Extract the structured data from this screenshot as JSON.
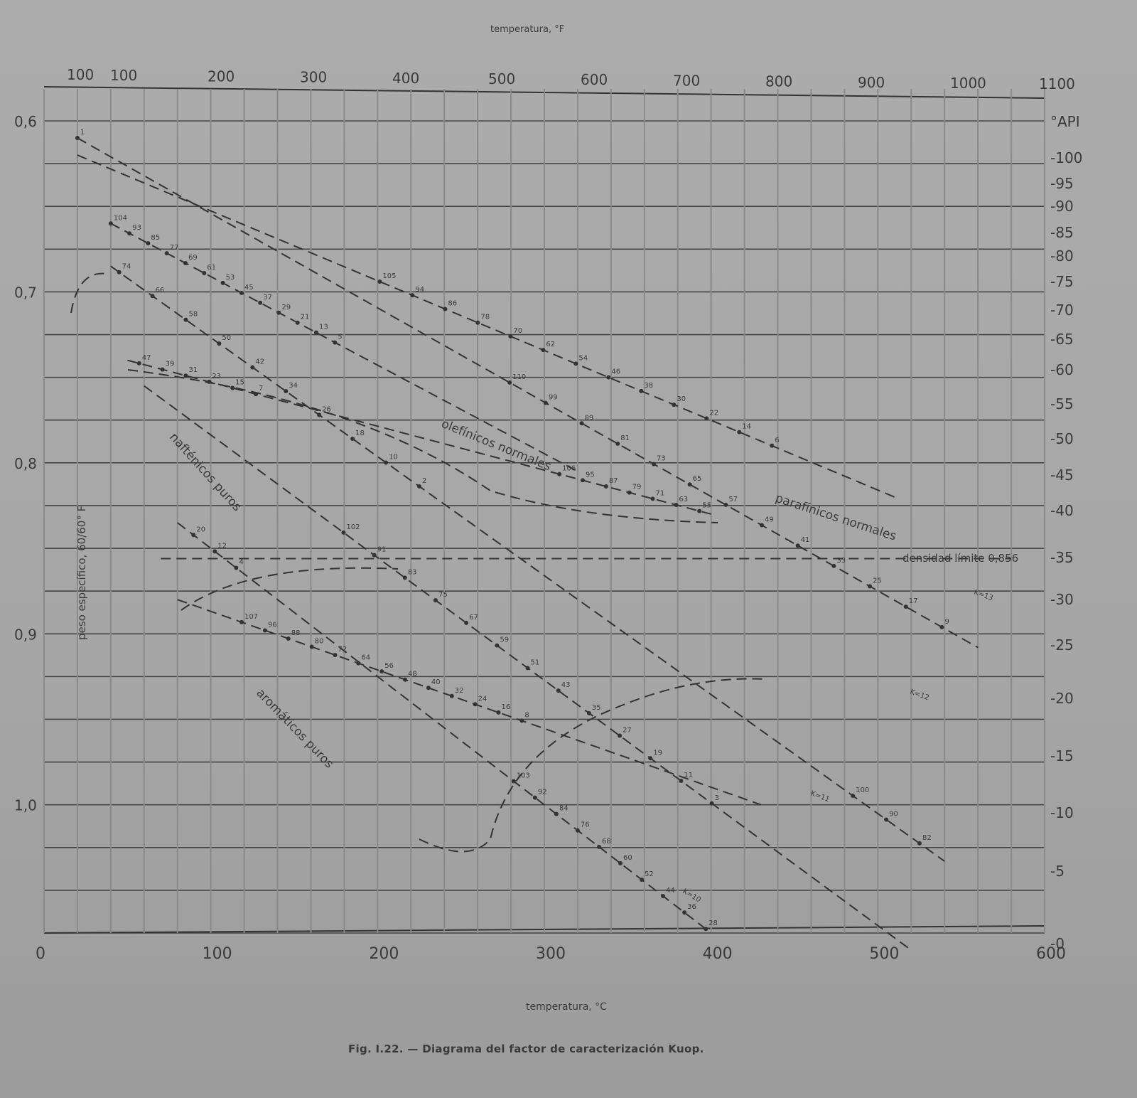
{
  "figure": {
    "caption": "Fig. I.22. — Diagrama del factor de caracterización Kuop.",
    "top_axis_title": "temperatura, °F",
    "bottom_axis_title": "temperatura, °C",
    "left_axis_title": "peso específico, 60/60° F",
    "right_axis_title": "°API"
  },
  "chart_data": {
    "type": "line",
    "title": "Diagrama del factor de caracterización Kuop",
    "xlabel": "temperatura, °C",
    "x2label": "temperatura, °F",
    "ylabel": "peso específico, 60/60° F",
    "y2label": "°API",
    "xlim": [
      0,
      600
    ],
    "ylim": [
      0.6,
      1.075
    ],
    "grid": true,
    "x_ticks": [
      0,
      100,
      200,
      300,
      400,
      500,
      600
    ],
    "x2_ticks": [
      "100",
      "100",
      "200",
      "300",
      "400",
      "500",
      "600",
      "700",
      "800",
      "900",
      "1000",
      "1100"
    ],
    "y_ticks": [
      "0,6",
      "0,7",
      "0,8",
      "0,9",
      "1,0"
    ],
    "y2_ticks": [
      "100",
      "95",
      "90",
      "85",
      "80",
      "75",
      "70",
      "65",
      "60",
      "55",
      "50",
      "45",
      "40",
      "35",
      "30",
      "25",
      "20",
      "15",
      "10",
      "5",
      "0"
    ],
    "series": [
      {
        "name": "K=13",
        "style": "dashed",
        "x": [
          20,
          560
        ],
        "y": [
          0.61,
          0.908
        ]
      },
      {
        "name": "K=12",
        "style": "dashed",
        "x": [
          40,
          540
        ],
        "y": [
          0.685,
          1.033
        ]
      },
      {
        "name": "K=11",
        "style": "dashed",
        "x": [
          60,
          520
        ],
        "y": [
          0.755,
          1.085
        ]
      },
      {
        "name": "K=10",
        "style": "dashed",
        "x": [
          80,
          400
        ],
        "y": [
          0.835,
          1.075
        ]
      },
      {
        "name": "olefínicos normales",
        "style": "dashed",
        "x": [
          40,
          320
        ],
        "y": [
          0.66,
          0.805
        ]
      },
      {
        "name": "parafínicos normales",
        "style": "dashed",
        "x": [
          20,
          510
        ],
        "y": [
          0.62,
          0.82
        ]
      },
      {
        "name": "nafténicos puros",
        "style": "dashed",
        "x": [
          50,
          400
        ],
        "y": [
          0.74,
          0.83
        ]
      },
      {
        "name": "aromáticos puros",
        "style": "dashed",
        "x": [
          80,
          430
        ],
        "y": [
          0.88,
          1.0
        ]
      },
      {
        "name": "densidad límite 0,856",
        "style": "dashed",
        "x": [
          70,
          580
        ],
        "y": [
          0.856,
          0.856
        ]
      }
    ],
    "annotations": [
      "olefínicos normales",
      "parafínicos normales",
      "nafténicos puros",
      "aromáticos puros",
      "densidad límite 0,856",
      "K=13",
      "K=12",
      "K=11",
      "K=10"
    ],
    "point_labels": [
      "1",
      "2",
      "3",
      "4",
      "5",
      "6",
      "7",
      "8",
      "9",
      "10",
      "11",
      "12",
      "13",
      "14",
      "15",
      "16",
      "17",
      "18",
      "19",
      "20",
      "21",
      "22",
      "23",
      "24",
      "25",
      "26",
      "27",
      "28",
      "29",
      "30",
      "31",
      "32",
      "33",
      "34",
      "35",
      "36",
      "37",
      "38",
      "39",
      "40",
      "41",
      "42",
      "43",
      "44",
      "45",
      "46",
      "47",
      "48",
      "49",
      "50",
      "51",
      "52",
      "53",
      "54",
      "55",
      "56",
      "57",
      "58",
      "59",
      "60",
      "61",
      "62",
      "63",
      "64",
      "65",
      "66",
      "67",
      "68",
      "69",
      "70",
      "71",
      "72",
      "73",
      "74",
      "75",
      "76",
      "77",
      "78",
      "79",
      "80",
      "81",
      "82",
      "83",
      "84",
      "85",
      "86",
      "87",
      "88",
      "89",
      "90",
      "91",
      "92",
      "93",
      "94",
      "95",
      "96",
      "99",
      "100",
      "102",
      "103",
      "104",
      "105",
      "106",
      "107",
      "110"
    ]
  },
  "labels": {
    "kcurves": {
      "k13": "K=13",
      "k12": "K=12",
      "k11": "K=11",
      "k10": "K=10"
    },
    "families": {
      "olefinicos": "olefínicos normales",
      "parafinicos": "parafínicos normales",
      "naftenicos": "nafténicos puros",
      "aromaticos": "aromáticos puros",
      "densidad": "densidad límite 0,856"
    }
  }
}
